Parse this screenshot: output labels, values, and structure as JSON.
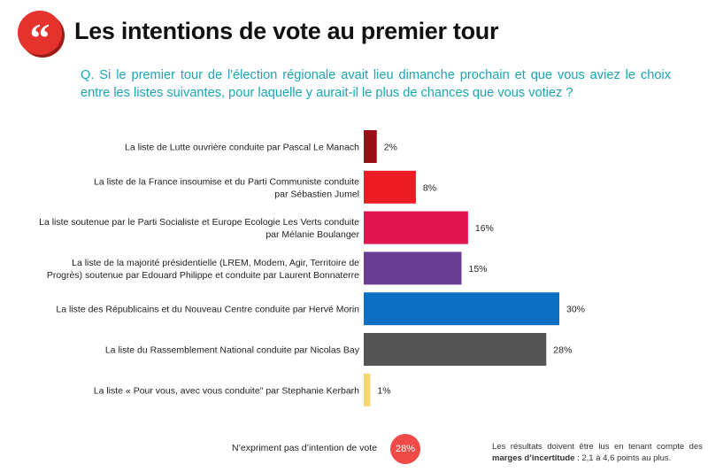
{
  "header": {
    "logo_glyph": "“",
    "title": "Les intentions de vote au premier tour",
    "question": "Q. Si le premier tour de l'élection régionale avait lieu dimanche prochain et que vous aviez le choix entre les listes suivantes, pour laquelle y aurait-il le plus de chances que vous votiez ?"
  },
  "chart_data": {
    "type": "bar",
    "orientation": "horizontal",
    "unit": "%",
    "categories": [
      [
        "La liste de Lutte ouvrière conduite par Pascal Le Manach"
      ],
      [
        "La liste de la France insoumise et du Parti Communiste conduite",
        "par Sébastien Jumel"
      ],
      [
        "La liste soutenue par le Parti Socialiste et Europe Ecologie Les Verts conduite",
        "par Mélanie Boulanger"
      ],
      [
        "La liste de la majorité présidentielle (LREM, Modem, Agir, Territoire de",
        "Progrès) soutenue par Edouard Philippe et conduite par Laurent Bonnaterre"
      ],
      [
        "La liste des Républicains et du Nouveau Centre conduite par Hervé Morin"
      ],
      [
        "La liste du Rassemblement National conduite par Nicolas Bay"
      ],
      [
        "La liste « Pour vous, avec vous conduite\" par Stephanie Kerbarh"
      ]
    ],
    "values": [
      2,
      8,
      16,
      15,
      30,
      28,
      1
    ],
    "value_labels": [
      "2%",
      "8%",
      "16%",
      "15%",
      "30%",
      "28%",
      "1%"
    ],
    "colors": [
      "#9b0f14",
      "#ee1c25",
      "#e0144f",
      "#6a3d95",
      "#0b6fc4",
      "#555555",
      "#f5d76e"
    ],
    "xlim": [
      0,
      30
    ]
  },
  "footer": {
    "no_intention_label": "N’expriment pas d’intention de vote",
    "no_intention_value": "28%",
    "note_prefix": "Les résultats doivent être lus en tenant compte des",
    "note_bold": "marges d’incertitude",
    "note_suffix": " : 2,1 à 4,6 points au plus."
  }
}
